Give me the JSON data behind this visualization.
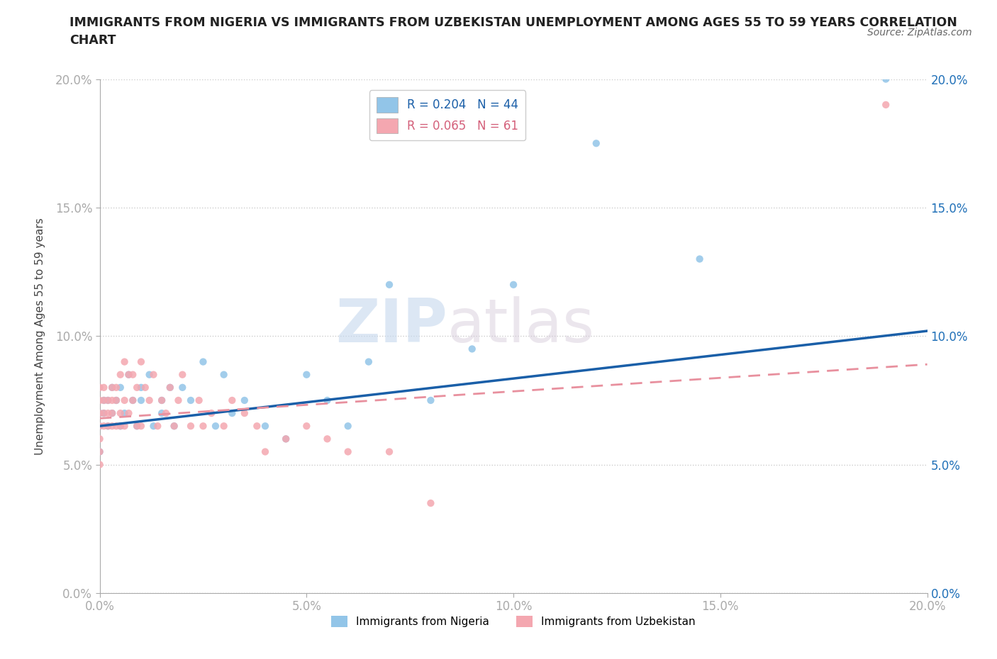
{
  "title": "IMMIGRANTS FROM NIGERIA VS IMMIGRANTS FROM UZBEKISTAN UNEMPLOYMENT AMONG AGES 55 TO 59 YEARS CORRELATION\nCHART",
  "source": "Source: ZipAtlas.com",
  "ylabel": "Unemployment Among Ages 55 to 59 years",
  "xlim": [
    0.0,
    0.2
  ],
  "ylim": [
    0.0,
    0.2
  ],
  "yticks": [
    0.0,
    0.05,
    0.1,
    0.15,
    0.2
  ],
  "xticks": [
    0.0,
    0.05,
    0.1,
    0.15,
    0.2
  ],
  "ytick_labels": [
    "0.0%",
    "5.0%",
    "10.0%",
    "15.0%",
    "20.0%"
  ],
  "xtick_labels": [
    "0.0%",
    "5.0%",
    "10.0%",
    "15.0%",
    "20.0%"
  ],
  "nigeria_color": "#92c5e8",
  "uzbekistan_color": "#f4a7b0",
  "nigeria_R": 0.204,
  "nigeria_N": 44,
  "uzbekistan_R": 0.065,
  "uzbekistan_N": 61,
  "nigeria_line_color": "#1a5fa8",
  "uzbekistan_line_color": "#e8909e",
  "watermark_top": "ZIP",
  "watermark_bottom": "atlas",
  "nigeria_x": [
    0.0,
    0.0,
    0.0,
    0.001,
    0.001,
    0.002,
    0.002,
    0.003,
    0.003,
    0.004,
    0.005,
    0.005,
    0.006,
    0.007,
    0.008,
    0.009,
    0.01,
    0.01,
    0.012,
    0.013,
    0.015,
    0.015,
    0.017,
    0.018,
    0.02,
    0.022,
    0.025,
    0.028,
    0.03,
    0.032,
    0.035,
    0.04,
    0.045,
    0.05,
    0.055,
    0.06,
    0.065,
    0.07,
    0.08,
    0.09,
    0.1,
    0.12,
    0.145,
    0.19
  ],
  "nigeria_y": [
    0.07,
    0.065,
    0.055,
    0.075,
    0.07,
    0.075,
    0.065,
    0.08,
    0.07,
    0.075,
    0.08,
    0.065,
    0.07,
    0.085,
    0.075,
    0.065,
    0.08,
    0.075,
    0.085,
    0.065,
    0.075,
    0.07,
    0.08,
    0.065,
    0.08,
    0.075,
    0.09,
    0.065,
    0.085,
    0.07,
    0.075,
    0.065,
    0.06,
    0.085,
    0.075,
    0.065,
    0.09,
    0.12,
    0.075,
    0.095,
    0.12,
    0.175,
    0.13,
    0.2
  ],
  "uzbekistan_x": [
    0.0,
    0.0,
    0.0,
    0.0,
    0.0,
    0.0,
    0.0,
    0.001,
    0.001,
    0.001,
    0.001,
    0.002,
    0.002,
    0.002,
    0.003,
    0.003,
    0.003,
    0.003,
    0.004,
    0.004,
    0.004,
    0.005,
    0.005,
    0.005,
    0.006,
    0.006,
    0.006,
    0.007,
    0.007,
    0.008,
    0.008,
    0.009,
    0.009,
    0.01,
    0.01,
    0.011,
    0.012,
    0.013,
    0.014,
    0.015,
    0.016,
    0.017,
    0.018,
    0.019,
    0.02,
    0.022,
    0.024,
    0.025,
    0.027,
    0.03,
    0.032,
    0.035,
    0.038,
    0.04,
    0.045,
    0.05,
    0.055,
    0.06,
    0.07,
    0.08,
    0.19
  ],
  "uzbekistan_y": [
    0.065,
    0.07,
    0.075,
    0.08,
    0.06,
    0.055,
    0.05,
    0.07,
    0.075,
    0.065,
    0.08,
    0.07,
    0.075,
    0.065,
    0.08,
    0.075,
    0.065,
    0.07,
    0.08,
    0.075,
    0.065,
    0.085,
    0.07,
    0.065,
    0.09,
    0.075,
    0.065,
    0.085,
    0.07,
    0.085,
    0.075,
    0.065,
    0.08,
    0.09,
    0.065,
    0.08,
    0.075,
    0.085,
    0.065,
    0.075,
    0.07,
    0.08,
    0.065,
    0.075,
    0.085,
    0.065,
    0.075,
    0.065,
    0.07,
    0.065,
    0.075,
    0.07,
    0.065,
    0.055,
    0.06,
    0.065,
    0.06,
    0.055,
    0.055,
    0.035,
    0.19
  ]
}
